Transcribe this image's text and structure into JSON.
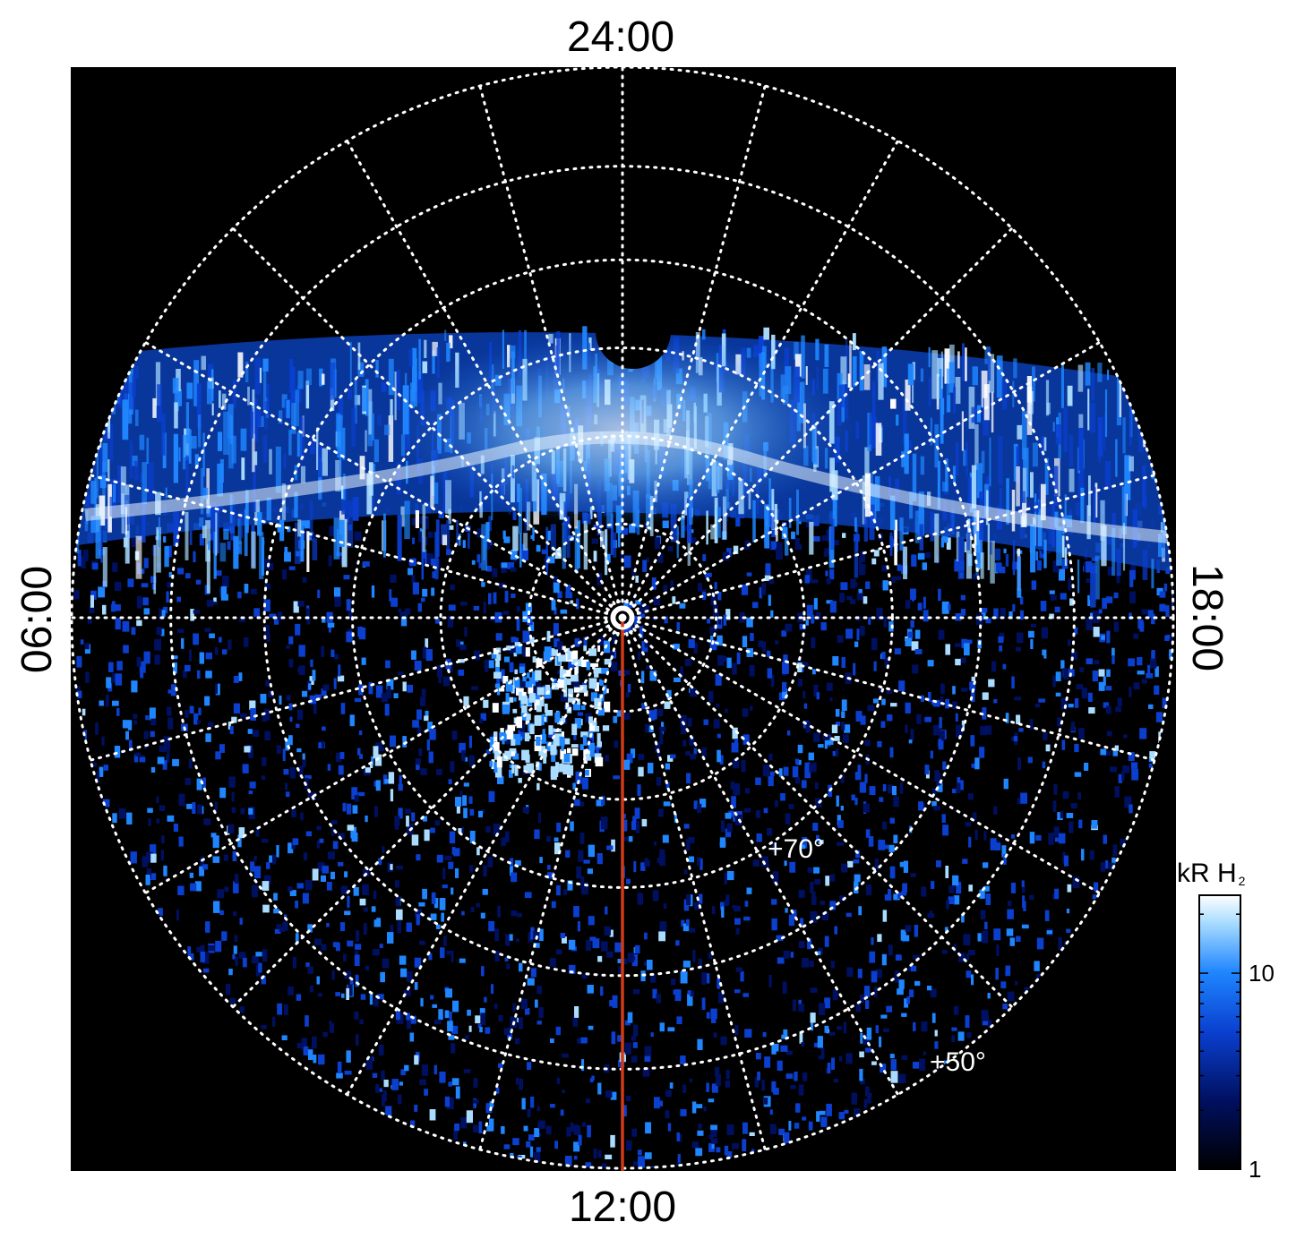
{
  "chart_data": {
    "type": "heatmap",
    "projection": "polar",
    "local_time_labels": {
      "top": "24:00",
      "bottom": "12:00",
      "left": "06:00",
      "right": "18:00"
    },
    "latitude_labels": [
      {
        "label": "+70°",
        "value": 70
      },
      {
        "label": "+50°",
        "value": 50
      }
    ],
    "colorbar": {
      "title_main": "kR H",
      "title_sub": "2",
      "scale": "log",
      "range": [
        1,
        25
      ],
      "ticks": [
        {
          "label": "1",
          "value": 1
        },
        {
          "label": "10",
          "value": 10
        }
      ]
    },
    "colors": {
      "background": "#000000",
      "grid": "#ffffff",
      "meridian_line": "#d03a14",
      "colormap": [
        "#000000",
        "#001060",
        "#0a3fcf",
        "#1f86ff",
        "#a9dcff",
        "#ffffff"
      ]
    },
    "grid": true
  }
}
